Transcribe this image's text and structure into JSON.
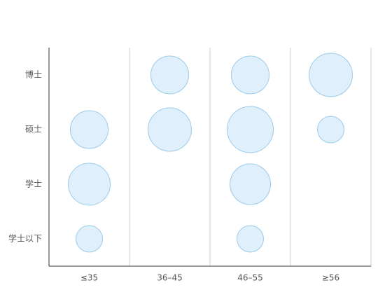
{
  "chart_data": {
    "type": "bubble",
    "x_categories": [
      "≤35",
      "36–45",
      "46–55",
      "≥56"
    ],
    "y_categories": [
      "博士",
      "硕士",
      "学士",
      "学士以下"
    ],
    "sizes": [
      [
        null,
        73,
        73,
        96
      ],
      [
        73,
        96,
        109,
        36
      ],
      [
        90,
        null,
        84,
        null
      ],
      [
        36,
        null,
        36,
        null
      ]
    ],
    "color": "#dfeffc",
    "stroke": "#9ccbe8",
    "grid": true
  }
}
